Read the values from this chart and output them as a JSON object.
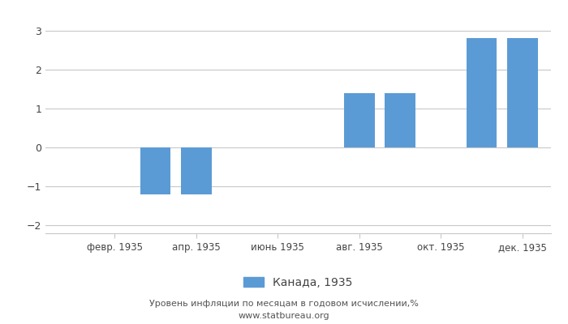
{
  "months_all": 12,
  "values": [
    null,
    null,
    -1.2,
    -1.2,
    null,
    null,
    null,
    1.4,
    1.4,
    null,
    2.8,
    2.8
  ],
  "tick_positions": [
    1,
    3,
    5,
    7,
    9,
    11
  ],
  "tick_labels": [
    "февр. 1935",
    "апр. 1935",
    "июнь 1935",
    "авг. 1935",
    "окт. 1935",
    "дек. 1935"
  ],
  "bar_color": "#5b9bd5",
  "ylim": [
    -2.2,
    3.2
  ],
  "yticks": [
    -2,
    -1,
    0,
    1,
    2,
    3
  ],
  "legend_label": "Канада, 1935",
  "subtitle": "Уровень инфляции по месяцам в годовом исчислении,%",
  "source": "www.statbureau.org",
  "background_color": "#ffffff",
  "grid_color": "#c8c8c8"
}
